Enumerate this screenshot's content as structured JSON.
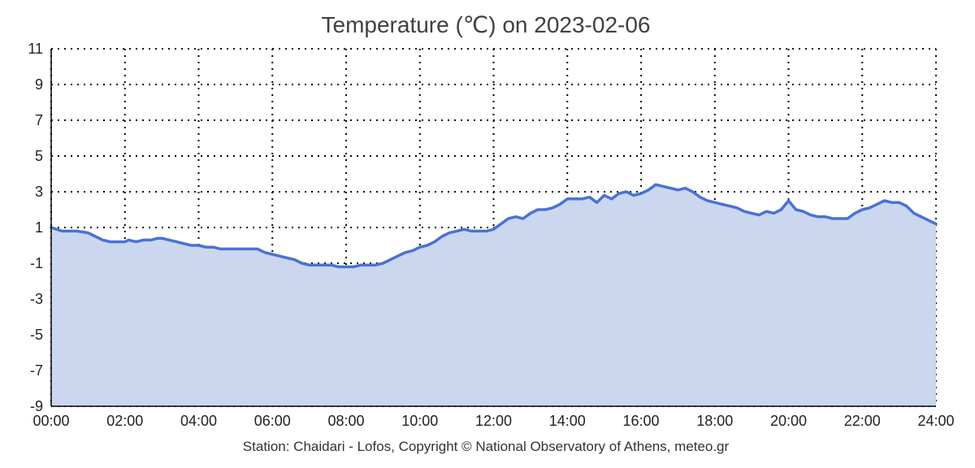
{
  "chart_data": {
    "type": "area",
    "title": "Temperature (℃) on 2023-02-06",
    "xlabel": "",
    "ylabel": "",
    "footer": "Station: Chaidari - Lofos, Copyright © National Observatory of Athens, meteo.gr",
    "xlim": [
      0,
      24
    ],
    "ylim": [
      -9,
      11
    ],
    "x_ticks": [
      "00:00",
      "02:00",
      "04:00",
      "06:00",
      "08:00",
      "10:00",
      "12:00",
      "14:00",
      "16:00",
      "18:00",
      "20:00",
      "22:00",
      "24:00"
    ],
    "y_ticks": [
      "11",
      "9",
      "7",
      "5",
      "3",
      "1",
      "-1",
      "-3",
      "-5",
      "-7",
      "-9"
    ],
    "grid": true,
    "line_color": "#4a72d1",
    "fill_color": "#cbd6ef",
    "series": [
      {
        "x": [
          0.0,
          0.3,
          0.5,
          0.7,
          1.0,
          1.2,
          1.4,
          1.6,
          1.8,
          2.0,
          2.1,
          2.3,
          2.5,
          2.7,
          2.9,
          3.0,
          3.2,
          3.4,
          3.6,
          3.8,
          4.0,
          4.2,
          4.4,
          4.6,
          4.8,
          5.0,
          5.2,
          5.4,
          5.6,
          5.8,
          6.0,
          6.2,
          6.4,
          6.6,
          6.8,
          7.0,
          7.2,
          7.4,
          7.6,
          7.8,
          8.0,
          8.2,
          8.4,
          8.6,
          8.8,
          9.0,
          9.2,
          9.4,
          9.6,
          9.8,
          10.0,
          10.2,
          10.4,
          10.6,
          10.8,
          11.0,
          11.2,
          11.4,
          11.6,
          11.8,
          12.0,
          12.2,
          12.4,
          12.6,
          12.8,
          13.0,
          13.2,
          13.4,
          13.6,
          13.8,
          14.0,
          14.2,
          14.4,
          14.6,
          14.8,
          15.0,
          15.2,
          15.4,
          15.6,
          15.8,
          16.0,
          16.2,
          16.4,
          16.6,
          16.8,
          17.0,
          17.2,
          17.4,
          17.6,
          17.8,
          18.0,
          18.2,
          18.4,
          18.6,
          18.8,
          19.0,
          19.2,
          19.4,
          19.6,
          19.8,
          20.0,
          20.2,
          20.4,
          20.6,
          20.8,
          21.0,
          21.2,
          21.4,
          21.6,
          21.8,
          22.0,
          22.2,
          22.4,
          22.6,
          22.8,
          23.0,
          23.2,
          23.4,
          23.6,
          23.8,
          24.0
        ],
        "values": [
          1.0,
          0.8,
          0.8,
          0.8,
          0.7,
          0.5,
          0.3,
          0.2,
          0.2,
          0.2,
          0.3,
          0.2,
          0.3,
          0.3,
          0.4,
          0.4,
          0.3,
          0.2,
          0.1,
          0.0,
          0.0,
          -0.1,
          -0.1,
          -0.2,
          -0.2,
          -0.2,
          -0.2,
          -0.2,
          -0.2,
          -0.4,
          -0.5,
          -0.6,
          -0.7,
          -0.8,
          -1.0,
          -1.1,
          -1.1,
          -1.1,
          -1.1,
          -1.2,
          -1.2,
          -1.2,
          -1.1,
          -1.1,
          -1.1,
          -1.0,
          -0.8,
          -0.6,
          -0.4,
          -0.3,
          -0.1,
          0.0,
          0.2,
          0.5,
          0.7,
          0.8,
          0.9,
          0.8,
          0.8,
          0.8,
          0.9,
          1.2,
          1.5,
          1.6,
          1.5,
          1.8,
          2.0,
          2.0,
          2.1,
          2.3,
          2.6,
          2.6,
          2.6,
          2.7,
          2.4,
          2.8,
          2.6,
          2.9,
          3.0,
          2.8,
          2.9,
          3.1,
          3.4,
          3.3,
          3.2,
          3.1,
          3.2,
          3.0,
          2.7,
          2.5,
          2.4,
          2.3,
          2.2,
          2.1,
          1.9,
          1.8,
          1.7,
          1.9,
          1.8,
          2.0,
          2.5,
          2.0,
          1.9,
          1.7,
          1.6,
          1.6,
          1.5,
          1.5,
          1.5,
          1.8,
          2.0,
          2.1,
          2.3,
          2.5,
          2.4,
          2.4,
          2.2,
          1.8,
          1.6,
          1.4,
          1.2
        ]
      }
    ]
  }
}
